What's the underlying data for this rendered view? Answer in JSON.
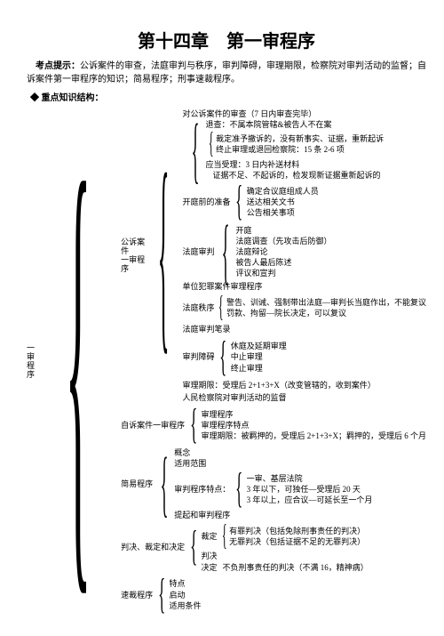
{
  "title": "第十四章　第一审程序",
  "intro_label": "考点提示：",
  "intro_body": "公诉案件的审查，法庭审判与秩序，审判障碍，审理期限，检察院对审判活动的监督；自诉案件第一审程序的知识；简易程序；刑事速裁程序。",
  "subhead": "重点知识结构：",
  "root": "一审程序",
  "n1": "公诉案件一审程序",
  "n1_1": "对公诉案件的审查（7 日内审查完毕）",
  "n1_1_a": "退查：不属本院管辖&被告人不在案",
  "n1_1_b": "裁定准予撤诉的，没有新事实、证据，重新起诉",
  "n1_1_c": "终止审理或退回检察院：15 条 2-6 项",
  "n1_1_d": "应当受理：3 日内补送材料",
  "n1_1_e": "证据不足、不起诉的，检发现新证据重新起诉的",
  "n1_2": "开庭前的准备",
  "n1_2_a": "确定合议庭组成人员",
  "n1_2_b": "送达相关文书",
  "n1_2_c": "公告相关事项",
  "n1_3": "法庭审判",
  "n1_3_a": "开庭",
  "n1_3_b": "法庭调查（先攻击后防御）",
  "n1_3_c": "法庭辩论",
  "n1_3_d": "被告人最后陈述",
  "n1_3_e": "评议和宣判",
  "n1_4": "单位犯罪案件审理程序",
  "n1_5": "法庭秩序",
  "n1_5_a": "警告、训诫、强制带出法庭—审判长当庭作出，不能复议",
  "n1_5_b": "罚款、拘留—院长决定，可以复议",
  "n1_6": "法庭审判笔录",
  "n1_7": "审判障碍",
  "n1_7_a": "休庭及延期审理",
  "n1_7_b": "中止审理",
  "n1_7_c": "终止审理",
  "n1_8": "审理期限：受理后 2+1+3+X（改变管辖的，收到案件）",
  "n1_9": "人民检察院对审判活动的监督",
  "n2": "自诉案件一审程序",
  "n2_a": "审理程序",
  "n2_b": "审理程序特点",
  "n2_c": "审理期限：被羁押的，受理后 2+1+3+X；羁押的，受理后 6 个月",
  "n3": "简易程序",
  "n3_a": "概念",
  "n3_b": "适用范围",
  "n3_c": "审判程序特点：",
  "n3_c_1": "一审、基层法院",
  "n3_c_2": "3 年以下，可独任—受理后 20 天",
  "n3_c_3": "3 年以上，应合议—可延长至一个月",
  "n3_d": "提起和审判程序",
  "n4": "判决、裁定和决定",
  "n4_a": "裁定",
  "n4_a_1": "有罪判决（包括免除刑事责任的判决）",
  "n4_a_2": "无罪判决（包括证据不足的无罪判决）",
  "n4_b": "判决",
  "n4_c": "决定",
  "n4_c_1": "不负刑事责任的判决（不满 16，精神病）",
  "n5": "速裁程序",
  "n5_a": "特点",
  "n5_b": "启动",
  "n5_c": "适用条件"
}
